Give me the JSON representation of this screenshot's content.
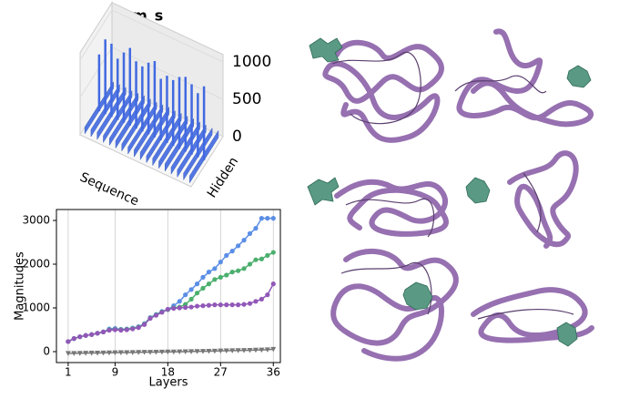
{
  "chart_data": [
    {
      "type": "bar3d",
      "title": "esm_s",
      "xlabel": "Sequence",
      "ylabel": "Hidden",
      "color": "#4169e1",
      "values": [
        760,
        1000,
        980,
        820,
        940,
        1040,
        900,
        870,
        960,
        1020,
        820,
        900,
        880,
        960,
        1000,
        940,
        860,
        990
      ],
      "base_values": [
        90,
        95,
        95,
        90,
        95,
        100,
        95,
        90,
        95,
        100,
        90,
        95,
        95,
        100,
        95,
        95,
        90,
        95
      ],
      "zlim": [
        0,
        1100
      ],
      "zticks": [
        0,
        500,
        1000
      ]
    },
    {
      "type": "line",
      "xlabel": "Layers",
      "ylabel": "Magnitudes",
      "x": [
        1,
        2,
        3,
        4,
        5,
        6,
        7,
        8,
        9,
        10,
        11,
        12,
        13,
        14,
        15,
        16,
        17,
        18,
        19,
        20,
        21,
        22,
        23,
        24,
        25,
        26,
        27,
        28,
        29,
        30,
        31,
        32,
        33,
        34,
        35,
        36
      ],
      "series": [
        {
          "color": "#5b8ee6",
          "marker": "o",
          "values": [
            230,
            300,
            340,
            370,
            390,
            420,
            450,
            520,
            530,
            510,
            520,
            540,
            570,
            640,
            780,
            850,
            920,
            960,
            1050,
            1150,
            1300,
            1420,
            1550,
            1700,
            1820,
            1900,
            2050,
            2200,
            2300,
            2420,
            2550,
            2700,
            2820,
            3050,
            3050,
            3050
          ]
        },
        {
          "color": "#4caf6e",
          "marker": "o",
          "values": [
            230,
            300,
            340,
            370,
            390,
            420,
            450,
            500,
            510,
            500,
            510,
            530,
            560,
            630,
            770,
            840,
            910,
            960,
            1000,
            1020,
            1080,
            1200,
            1340,
            1450,
            1550,
            1650,
            1700,
            1750,
            1820,
            1850,
            1900,
            2000,
            2100,
            2120,
            2200,
            2270
          ]
        },
        {
          "color": "#9158b8",
          "marker": "o",
          "values": [
            230,
            300,
            340,
            370,
            390,
            420,
            450,
            490,
            500,
            490,
            500,
            520,
            550,
            620,
            760,
            830,
            900,
            970,
            990,
            1000,
            1010,
            1020,
            1040,
            1050,
            1060,
            1070,
            1070,
            1070,
            1070,
            1070,
            1080,
            1100,
            1150,
            1200,
            1300,
            1550
          ]
        },
        {
          "color": "#777777",
          "marker": "v",
          "values": [
            -40,
            -38,
            -36,
            -34,
            -32,
            -30,
            -28,
            -26,
            -24,
            -22,
            -20,
            -18,
            -16,
            -14,
            -12,
            -10,
            -8,
            -6,
            -4,
            -2,
            0,
            2,
            5,
            8,
            11,
            14,
            17,
            20,
            23,
            26,
            29,
            32,
            36,
            40,
            45,
            55
          ]
        }
      ],
      "xlim": [
        -1,
        37.2
      ],
      "xticks": [
        1,
        9,
        18,
        27,
        36
      ],
      "ylim": [
        -250,
        3250
      ],
      "yticks": [
        0,
        1000,
        2000,
        3000
      ],
      "grid": "x"
    }
  ]
}
